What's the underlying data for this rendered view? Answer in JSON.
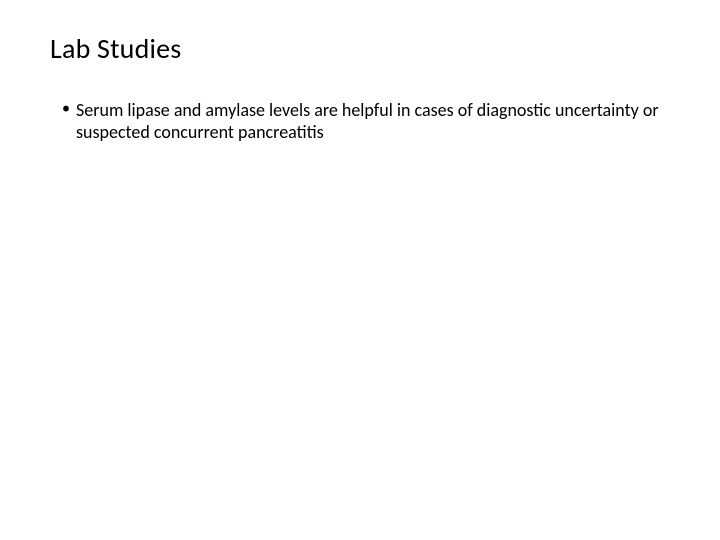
{
  "slide": {
    "title": "Lab Studies",
    "title_fontsize": 28,
    "title_color": "#000000",
    "background_color": "#ffffff",
    "bullets": [
      {
        "text": "Serum lipase and amylase levels are helpful in cases of diagnostic uncertainty or suspected concurrent pancreatitis",
        "fontsize": 18,
        "color": "#000000"
      }
    ]
  }
}
